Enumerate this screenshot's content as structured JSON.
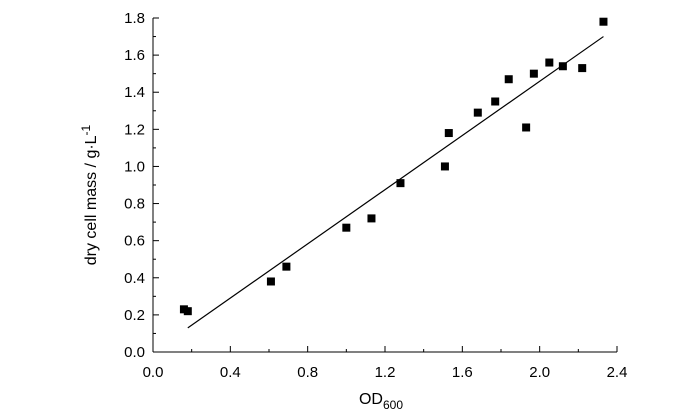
{
  "chart_data": {
    "type": "scatter",
    "title": "",
    "xlabel": "OD",
    "xlabel_subscript": "600",
    "ylabel": "dry cell mass / g·L",
    "ylabel_superscript": "-1",
    "xlim": [
      0.0,
      2.4
    ],
    "ylim": [
      0.0,
      1.8
    ],
    "x_ticks": [
      "0.0",
      "0.4",
      "0.8",
      "1.2",
      "1.6",
      "2.0",
      "2.4"
    ],
    "y_ticks": [
      "0.0",
      "0.2",
      "0.4",
      "0.6",
      "0.8",
      "1.0",
      "1.2",
      "1.4",
      "1.6",
      "1.8"
    ],
    "grid": false,
    "marker": "square",
    "marker_color": "#000000",
    "series": [
      {
        "points": [
          [
            0.16,
            0.23
          ],
          [
            0.18,
            0.22
          ],
          [
            0.61,
            0.38
          ],
          [
            0.69,
            0.46
          ],
          [
            1.0,
            0.67
          ],
          [
            1.13,
            0.72
          ],
          [
            1.28,
            0.91
          ],
          [
            1.51,
            1.0
          ],
          [
            1.53,
            1.18
          ],
          [
            1.68,
            1.29
          ],
          [
            1.77,
            1.35
          ],
          [
            1.84,
            1.47
          ],
          [
            1.93,
            1.21
          ],
          [
            1.97,
            1.5
          ],
          [
            2.05,
            1.56
          ],
          [
            2.12,
            1.54
          ],
          [
            2.22,
            1.53
          ],
          [
            2.33,
            1.78
          ]
        ]
      }
    ],
    "fit_line": {
      "x": [
        0.18,
        2.33
      ],
      "y": [
        0.13,
        1.7
      ]
    }
  }
}
